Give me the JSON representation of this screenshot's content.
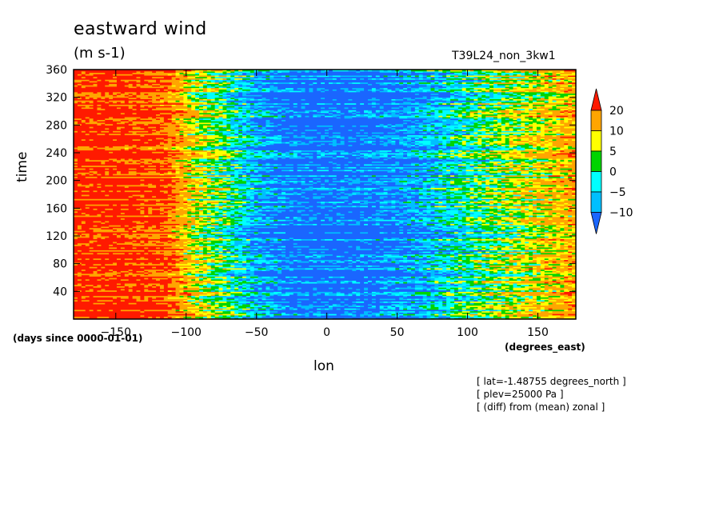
{
  "chart_data": {
    "type": "heatmap",
    "title": "eastward wind",
    "units": "(m s-1)",
    "run_label": "T39L24_non_3kw1",
    "xlabel": "lon",
    "xunits": "(degrees_east)",
    "ylabel": "time",
    "yunits": "(days since 0000-01-01)",
    "xlim": [
      -180,
      177
    ],
    "ylim": [
      0,
      360
    ],
    "xticks": [
      -150,
      -100,
      -50,
      0,
      50,
      100,
      150
    ],
    "yticks": [
      40,
      80,
      120,
      160,
      200,
      240,
      280,
      320,
      360
    ],
    "colorbar": {
      "levels": [
        -10,
        -5,
        0,
        5,
        10,
        20
      ],
      "labels": [
        "20",
        "10",
        "5",
        "0",
        "-5",
        "-10"
      ],
      "colors": [
        "#1a66ff",
        "#00bfff",
        "#00ffff",
        "#00d400",
        "#ffff00",
        "#ffa500",
        "#ff1a00"
      ]
    },
    "field_description": {
      "lon_profile": [
        {
          "lon": -180,
          "value": 24
        },
        {
          "lon": -150,
          "value": 24
        },
        {
          "lon": -115,
          "value": 21
        },
        {
          "lon": -95,
          "value": 8
        },
        {
          "lon": -70,
          "value": 0
        },
        {
          "lon": -50,
          "value": -8
        },
        {
          "lon": -20,
          "value": -14
        },
        {
          "lon": 20,
          "value": -14
        },
        {
          "lon": 60,
          "value": -10
        },
        {
          "lon": 90,
          "value": -3
        },
        {
          "lon": 120,
          "value": 3
        },
        {
          "lon": 150,
          "value": 8
        },
        {
          "lon": 177,
          "value": 14
        }
      ]
    }
  },
  "notes": [
    "[ lat=-1.48755 degrees_north ]",
    "[ plev=25000 Pa ]",
    "[ (diff) from (mean) zonal ]"
  ]
}
